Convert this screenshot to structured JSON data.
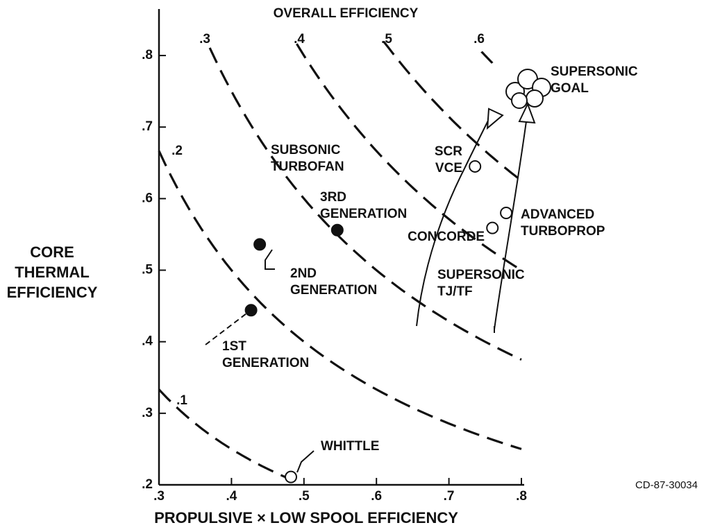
{
  "chart_data": {
    "type": "iso-efficiency",
    "title": "OVERALL EFFICIENCY",
    "xlabel": "PROPULSIVE × LOW SPOOL EFFICIENCY",
    "ylabel": [
      "CORE",
      "THERMAL",
      "EFFICIENCY"
    ],
    "xlim": [
      0.3,
      0.8
    ],
    "ylim": [
      0.2,
      0.865
    ],
    "xticks": [
      {
        "value": 0.3,
        "label": ".3"
      },
      {
        "value": 0.4,
        "label": ".4"
      },
      {
        "value": 0.5,
        "label": ".5"
      },
      {
        "value": 0.6,
        "label": ".6"
      },
      {
        "value": 0.7,
        "label": ".7"
      },
      {
        "value": 0.8,
        "label": ".8"
      }
    ],
    "yticks": [
      {
        "value": 0.2,
        "label": ".2"
      },
      {
        "value": 0.3,
        "label": ".3"
      },
      {
        "value": 0.4,
        "label": ".4"
      },
      {
        "value": 0.5,
        "label": ".5"
      },
      {
        "value": 0.6,
        "label": ".6"
      },
      {
        "value": 0.7,
        "label": ".7"
      },
      {
        "value": 0.8,
        "label": ".8"
      }
    ],
    "curves": [
      {
        "value": 0.1,
        "label": ".1",
        "x": [
          0.3,
          0.48
        ]
      },
      {
        "value": 0.2,
        "label": ".2",
        "x": [
          0.3,
          0.8
        ]
      },
      {
        "value": 0.3,
        "label": ".3",
        "x": [
          0.37,
          0.8
        ]
      },
      {
        "value": 0.4,
        "label": ".4",
        "x": [
          0.49,
          0.8
        ]
      },
      {
        "value": 0.5,
        "label": ".5",
        "x": [
          0.61,
          0.8
        ]
      },
      {
        "value": 0.6,
        "label": ".6",
        "x": [
          0.745,
          0.76
        ]
      }
    ],
    "points": [
      {
        "label": [
          "1ST",
          "GENERATION"
        ],
        "x": 0.427,
        "y": 0.444,
        "filled": true
      },
      {
        "label": [
          "2ND",
          "GENERATION"
        ],
        "x": 0.439,
        "y": 0.536,
        "filled": true
      },
      {
        "label": [
          "3RD",
          "GENERATION"
        ],
        "x": 0.546,
        "y": 0.556,
        "filled": true
      },
      {
        "label": [
          "WHITTLE"
        ],
        "x": 0.482,
        "y": 0.211,
        "filled": false
      },
      {
        "label": [
          "SCR",
          "VCE"
        ],
        "x": 0.736,
        "y": 0.645,
        "filled": false
      },
      {
        "label": [
          "CONCORDE"
        ],
        "x": 0.76,
        "y": 0.559,
        "filled": false
      },
      {
        "label": [
          "ADVANCED",
          "TURBOPROP"
        ],
        "x": 0.779,
        "y": 0.58,
        "filled": false
      }
    ],
    "annotations": [
      [
        "SUBSONIC",
        "TURBOFAN"
      ],
      [
        "SUPERSONIC",
        "TJ/TF"
      ],
      [
        "SUPERSONIC",
        "GOAL"
      ]
    ],
    "code": "CD-87-30034"
  }
}
